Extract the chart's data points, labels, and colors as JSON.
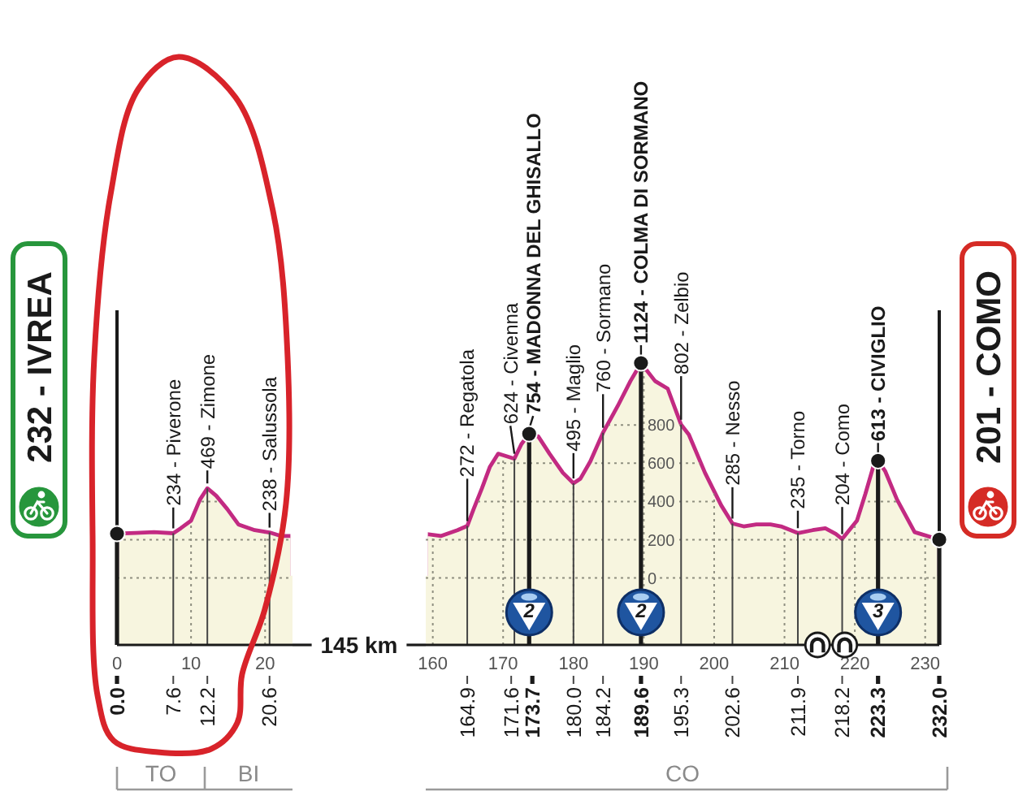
{
  "chart_data": [
    {
      "type": "area",
      "xlim": [
        0,
        23.7
      ],
      "xticks": [
        0,
        10,
        20
      ],
      "ylim": [
        -350,
        1400
      ],
      "yticks": [
        0,
        200,
        400,
        600,
        800
      ],
      "grid": true,
      "tick_labels": "x",
      "bands": [
        {
          "axis": "y",
          "from": -350,
          "to": 0,
          "color": "#f7f5df"
        }
      ],
      "ref_lines": [
        {
          "axis": "x",
          "value": 0,
          "label": "0.0",
          "color": "#1a1a1a"
        },
        {
          "axis": "x",
          "value": 7.6,
          "label": "7.6",
          "color": "#444444"
        },
        {
          "axis": "x",
          "value": 12.2,
          "label": "12.2",
          "color": "#444444"
        },
        {
          "axis": "x",
          "value": 20.6,
          "label": "20.6",
          "color": "#444444"
        }
      ],
      "series": [
        {
          "color": "#f7f5df",
          "x": [
            0,
            2.5,
            5,
            7.6,
            8.6,
            10,
            11.2,
            12.2,
            13.4,
            14.9,
            16.4,
            18.6,
            20.6,
            22.1,
            23.7
          ],
          "values": [
            232,
            236,
            240,
            234,
            260,
            300,
            410,
            469,
            430,
            360,
            280,
            250,
            238,
            220,
            220
          ]
        },
        {
          "type": "scatter",
          "color": "#1a1a1a",
          "marker": "circle",
          "x": [
            0
          ],
          "values": [
            232
          ]
        }
      ],
      "annotations": [
        "232 - IVREA",
        "145 km",
        "TO",
        "BI",
        {
          "text": "234 - Piverone",
          "x": 7.6,
          "y": 234
        },
        {
          "text": "469 - Zimone",
          "x": 12.2,
          "y": 469
        },
        {
          "text": "238 - Salussola",
          "x": 20.6,
          "y": 238
        }
      ]
    },
    {
      "type": "area",
      "xlim": [
        159,
        232
      ],
      "xticks": [
        160,
        170,
        180,
        190,
        200,
        210,
        220,
        230
      ],
      "ylim": [
        -350,
        1400
      ],
      "yticks": [
        0,
        200,
        400,
        600,
        800
      ],
      "grid": true,
      "bands": [
        {
          "axis": "y",
          "from": -350,
          "to": 0,
          "color": "#f7f5df"
        }
      ],
      "ref_lines": [
        {
          "axis": "x",
          "value": 164.9,
          "label": "164.9",
          "color": "#444444"
        },
        {
          "axis": "x",
          "value": 171.6,
          "label": "171.6",
          "color": "#444444"
        },
        {
          "axis": "x",
          "value": 173.7,
          "label": "173.7",
          "color": "#1a1a1a"
        },
        {
          "axis": "x",
          "value": 180,
          "label": "180.0",
          "color": "#444444"
        },
        {
          "axis": "x",
          "value": 184.2,
          "label": "184.2",
          "color": "#444444"
        },
        {
          "axis": "x",
          "value": 189.6,
          "label": "189.6",
          "color": "#1a1a1a"
        },
        {
          "axis": "x",
          "value": 195.3,
          "label": "195.3",
          "color": "#444444"
        },
        {
          "axis": "x",
          "value": 202.6,
          "label": "202.6",
          "color": "#444444"
        },
        {
          "axis": "x",
          "value": 211.9,
          "label": "211.9",
          "color": "#444444"
        },
        {
          "axis": "x",
          "value": 218.2,
          "label": "218.2",
          "color": "#444444"
        },
        {
          "axis": "x",
          "value": 223.3,
          "label": "223.3",
          "color": "#1a1a1a"
        },
        {
          "axis": "x",
          "value": 232,
          "label": "232.0",
          "color": "#1a1a1a"
        }
      ],
      "series": [
        {
          "color": "#f7f5df",
          "x": [
            159,
            161.2,
            163.5,
            164.9,
            165.8,
            167,
            168.1,
            169.3,
            171.6,
            172.6,
            173.7,
            175,
            176.6,
            178.5,
            180,
            181,
            182.4,
            184.2,
            186.3,
            188.1,
            189.6,
            191.6,
            193.4,
            195.3,
            196.4,
            198.7,
            201,
            202.6,
            204.2,
            206,
            208,
            209.5,
            211.9,
            214,
            215.8,
            217.3,
            218.2,
            220.3,
            221.5,
            222.6,
            223.3,
            224.3,
            226,
            228.5,
            232
          ],
          "values": [
            230,
            220,
            250,
            272,
            360,
            470,
            580,
            650,
            624,
            700,
            754,
            740,
            650,
            550,
            495,
            520,
            610,
            760,
            900,
            1030,
            1124,
            1030,
            990,
            802,
            750,
            550,
            380,
            285,
            270,
            280,
            280,
            270,
            235,
            250,
            260,
            230,
            204,
            300,
            440,
            580,
            613,
            560,
            410,
            240,
            201
          ]
        },
        {
          "type": "scatter",
          "color": "#1a1a1a",
          "marker": "circle",
          "x": [
            173.7,
            189.6,
            223.3,
            232
          ],
          "values": [
            754,
            1124,
            613,
            201
          ]
        }
      ],
      "annotations": [
        "201 - COMO",
        "CO",
        {
          "text": "272 - Regatola",
          "x": 164.9,
          "y": 272
        },
        {
          "text": "624 - Civenna",
          "x": 171.6,
          "y": 624
        },
        {
          "text": "754 - MADONNA DEL GHISALLO",
          "x": 173.7,
          "y": 754
        },
        {
          "text": "495 - Maglio",
          "x": 180,
          "y": 495
        },
        {
          "text": "760 - Sormano",
          "x": 184.2,
          "y": 760
        },
        {
          "text": "1124 - COLMA DI SORMANO",
          "x": 189.6,
          "y": 1124
        },
        {
          "text": "802 - Zelbio",
          "x": 195.3,
          "y": 802
        },
        {
          "text": "285 - Nesso",
          "x": 202.6,
          "y": 285
        },
        {
          "text": "235 - Torno",
          "x": 211.9,
          "y": 235
        },
        {
          "text": "204 - Como",
          "x": 218.2,
          "y": 204
        },
        {
          "text": "613 - CIVIGLIO",
          "x": 223.3,
          "y": 613
        },
        {
          "text": "2",
          "x": 173.7,
          "y": -180
        },
        {
          "text": "2",
          "x": 189.6,
          "y": -180
        },
        {
          "text": "3",
          "x": 223.3,
          "y": -180
        }
      ]
    }
  ]
}
